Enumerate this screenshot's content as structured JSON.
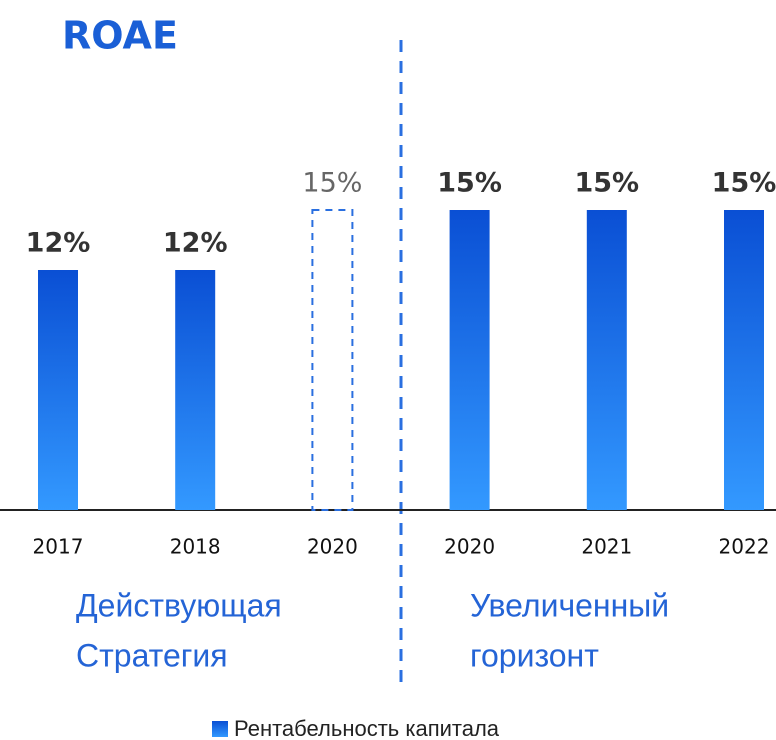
{
  "chart_data": {
    "type": "bar",
    "title": "ROAE",
    "categories": [
      "2017",
      "2018",
      "2020",
      "2020",
      "2021",
      "2022"
    ],
    "values": [
      12,
      12,
      15,
      15,
      15,
      15
    ],
    "value_labels": [
      "12%",
      "12%",
      "15%",
      "15%",
      "15%",
      "15%"
    ],
    "bar_styles": [
      "solid",
      "solid",
      "dashed",
      "solid",
      "solid",
      "solid"
    ],
    "gradient": [
      "#0a4fd4",
      "#3399ff"
    ],
    "group_labels": [
      [
        "Действующая",
        "Стратегия"
      ],
      [
        "Увеличенный",
        "горизонт"
      ]
    ],
    "legend": "Рентабельность капитала"
  }
}
